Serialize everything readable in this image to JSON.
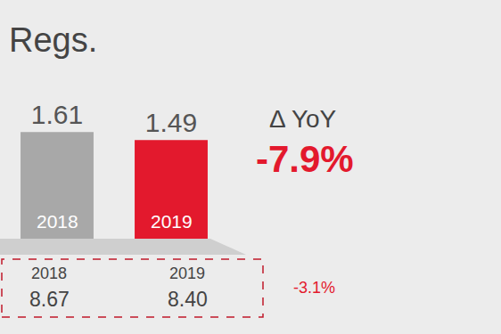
{
  "chart_data": {
    "type": "bar",
    "title": "Regs.",
    "categories": [
      "2018",
      "2019"
    ],
    "values": [
      1.61,
      1.49
    ],
    "colors": [
      "#a8a8a8",
      "#e3192d"
    ],
    "data_labels": true,
    "tick_labels": false,
    "ylim": [
      0,
      2.5
    ],
    "delta": {
      "label": "Δ YoY",
      "value": -7.9,
      "value_label": "-7.9%"
    },
    "totals": {
      "categories": [
        "2018",
        "2019"
      ],
      "values": [
        8.67,
        8.4
      ],
      "value_labels": [
        "8.67",
        "8.40"
      ],
      "change": -3.1,
      "change_label": "-3.1%"
    }
  }
}
